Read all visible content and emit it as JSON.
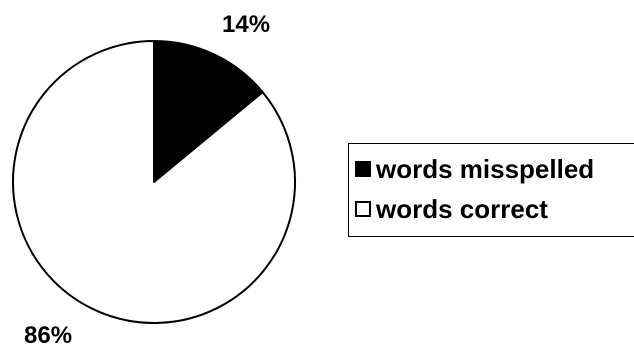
{
  "chart_data": {
    "type": "pie",
    "title": "",
    "categories": [
      "words misspelled",
      "words correct"
    ],
    "values": [
      14,
      86
    ],
    "data_labels": [
      "14%",
      "86%"
    ],
    "colors": [
      "#000000",
      "#ffffff"
    ],
    "legend_position": "right"
  }
}
